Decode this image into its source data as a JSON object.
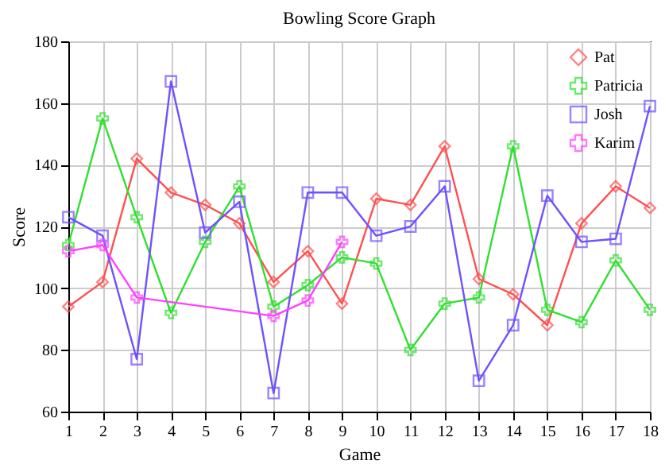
{
  "chart_data": {
    "type": "line",
    "title": "Bowling Score Graph",
    "xlabel": "Game",
    "ylabel": "Score",
    "x": [
      1,
      2,
      3,
      4,
      5,
      6,
      7,
      8,
      9,
      10,
      11,
      12,
      13,
      14,
      15,
      16,
      17,
      18
    ],
    "series": [
      {
        "name": "Pat",
        "color": "#ff5050",
        "marker": "diamond",
        "values": [
          94,
          102,
          142,
          131,
          127,
          121,
          102,
          112,
          95,
          129,
          127,
          146,
          103,
          98,
          88,
          121,
          133,
          126
        ]
      },
      {
        "name": "Patricia",
        "color": "#30e030",
        "marker": "cross",
        "values": [
          114,
          155,
          123,
          92,
          115,
          133,
          94,
          101,
          110,
          108,
          80,
          95,
          97,
          146,
          93,
          89,
          109,
          93
        ]
      },
      {
        "name": "Josh",
        "color": "#7050ff",
        "marker": "square",
        "values": [
          123,
          117,
          77,
          167,
          118,
          128,
          66,
          131,
          131,
          117,
          120,
          133,
          70,
          88,
          130,
          115,
          116,
          159
        ]
      },
      {
        "name": "Karim",
        "color": "#ff40ff",
        "marker": "cross",
        "x": [
          1,
          2,
          3,
          7,
          8,
          9
        ],
        "values": [
          112,
          114,
          97,
          91,
          96,
          115
        ]
      }
    ],
    "xlim": [
      1,
      18
    ],
    "xticks": [
      1,
      2,
      3,
      4,
      5,
      6,
      7,
      8,
      9,
      10,
      11,
      12,
      13,
      14,
      15,
      16,
      17,
      18
    ],
    "ylim": [
      60,
      180
    ],
    "yticks": [
      60,
      80,
      100,
      120,
      140,
      160,
      180
    ],
    "grid": true,
    "legend": "top right",
    "line_style": "solid"
  }
}
